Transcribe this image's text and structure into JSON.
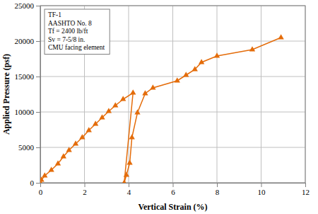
{
  "chart_data": {
    "type": "line",
    "x_label": "Vertical Strain (%)",
    "y_label": "Applied Pressure (psf)",
    "annotations": [
      "TF-1",
      "AASHTO No. 8",
      "Tf = 2400 lb/ft",
      "Sv = 7-5/8 in.",
      "CMU facing  element"
    ],
    "x": [
      0,
      0.05,
      0.2,
      0.5,
      0.8,
      1.05,
      1.3,
      1.6,
      1.9,
      2.2,
      2.5,
      2.8,
      3.1,
      3.4,
      3.75,
      4.2,
      3.8,
      3.9,
      4.05,
      4.15,
      4.4,
      4.75,
      5.1,
      6.2,
      6.6,
      7.0,
      7.3,
      8.0,
      9.6,
      10.9
    ],
    "series": [
      {
        "color": "#e46c0a",
        "marker": "triangle",
        "line_style": "solid",
        "values": [
          0,
          400,
          1000,
          1800,
          2700,
          3700,
          4600,
          5500,
          6400,
          7400,
          8300,
          9200,
          10100,
          10900,
          11800,
          12700,
          0,
          1100,
          2800,
          6400,
          9900,
          12600,
          13400,
          14400,
          15200,
          16000,
          17000,
          17900,
          18800,
          20500
        ]
      }
    ],
    "xlim": [
      0,
      12
    ],
    "xticks": [
      0,
      2,
      4,
      6,
      8,
      10,
      12
    ],
    "ylim": [
      0,
      25000
    ],
    "yticks": [
      0,
      5000,
      10000,
      15000,
      20000,
      25000
    ],
    "grid": true
  }
}
